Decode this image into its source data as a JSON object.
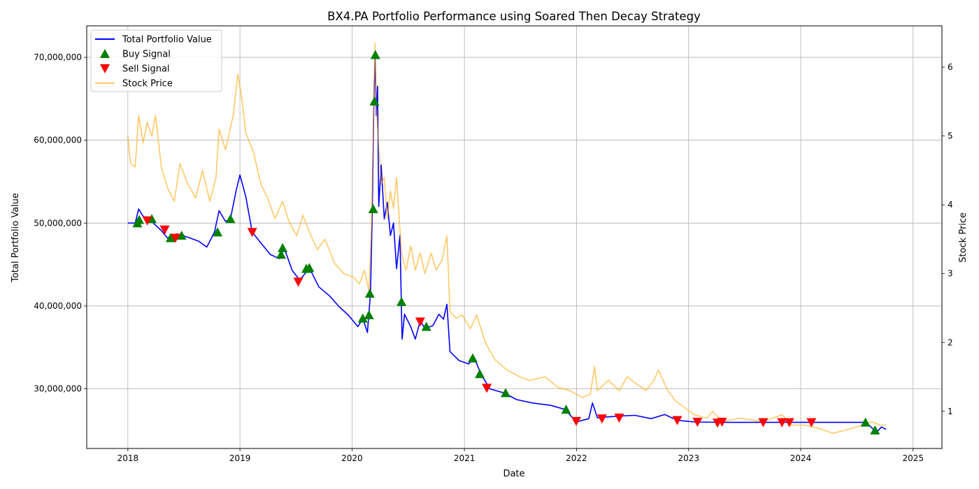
{
  "chart_data": {
    "type": "line",
    "title": "BX4.PA Portfolio Performance using Soared Then Decay Strategy",
    "xlabel": "Date",
    "ylabel_left": "Total Portfolio Value",
    "ylabel_right": "Stock Price",
    "x_range": [
      "2017-08-20",
      "2025-04-05"
    ],
    "y_left_range": [
      22800000,
      73800000
    ],
    "y_right_range": [
      0.46,
      6.6
    ],
    "x_ticks": [
      "2018",
      "2019",
      "2020",
      "2021",
      "2022",
      "2023",
      "2024",
      "2025"
    ],
    "y_left_ticks": [
      "30,000,000",
      "40,000,000",
      "50,000,000",
      "60,000,000",
      "70,000,000"
    ],
    "y_right_ticks": [
      "1",
      "2",
      "3",
      "4",
      "5",
      "6"
    ],
    "grid": true,
    "legend_position": "top-left",
    "legend": [
      "Total Portfolio Value",
      "Buy Signal",
      "Sell Signal",
      "Stock Price"
    ],
    "colors": {
      "portfolio": "#0000ff",
      "buy": "#008000",
      "sell": "#ff0000",
      "price": "#ffa500"
    },
    "series": [
      {
        "name": "Total Portfolio Value",
        "axis": "left",
        "points": [
          [
            "2018-01-01",
            50000000
          ],
          [
            "2018-01-25",
            50000000
          ],
          [
            "2018-02-05",
            51700000
          ],
          [
            "2018-02-20",
            50800000
          ],
          [
            "2018-03-10",
            50600000
          ],
          [
            "2018-03-25",
            50000000
          ],
          [
            "2018-04-20",
            49100000
          ],
          [
            "2018-05-10",
            48200000
          ],
          [
            "2018-06-10",
            48700000
          ],
          [
            "2018-07-15",
            48300000
          ],
          [
            "2018-08-20",
            47800000
          ],
          [
            "2018-09-15",
            47100000
          ],
          [
            "2018-10-10",
            48900000
          ],
          [
            "2018-10-25",
            51500000
          ],
          [
            "2018-11-15",
            50200000
          ],
          [
            "2018-12-01",
            50500000
          ],
          [
            "2018-12-20",
            54000000
          ],
          [
            "2019-01-01",
            55800000
          ],
          [
            "2019-01-20",
            53200000
          ],
          [
            "2019-02-10",
            48900000
          ],
          [
            "2019-03-10",
            47600000
          ],
          [
            "2019-04-10",
            46200000
          ],
          [
            "2019-05-10",
            45700000
          ],
          [
            "2019-05-25",
            47000000
          ],
          [
            "2019-06-20",
            44300000
          ],
          [
            "2019-07-15",
            43100000
          ],
          [
            "2019-08-15",
            44600000
          ],
          [
            "2019-09-15",
            42300000
          ],
          [
            "2019-10-20",
            41200000
          ],
          [
            "2019-11-20",
            39900000
          ],
          [
            "2019-12-20",
            38900000
          ],
          [
            "2020-01-20",
            37500000
          ],
          [
            "2020-02-05",
            38500000
          ],
          [
            "2020-02-20",
            36800000
          ],
          [
            "2020-03-01",
            41500000
          ],
          [
            "2020-03-07",
            51500000
          ],
          [
            "2020-03-12",
            64500000
          ],
          [
            "2020-03-16",
            70200000
          ],
          [
            "2020-03-20",
            63000000
          ],
          [
            "2020-03-24",
            66500000
          ],
          [
            "2020-03-28",
            52000000
          ],
          [
            "2020-04-05",
            57000000
          ],
          [
            "2020-04-15",
            50500000
          ],
          [
            "2020-04-25",
            52500000
          ],
          [
            "2020-05-05",
            48500000
          ],
          [
            "2020-05-15",
            50000000
          ],
          [
            "2020-05-25",
            44500000
          ],
          [
            "2020-06-05",
            48500000
          ],
          [
            "2020-06-12",
            36000000
          ],
          [
            "2020-06-20",
            39000000
          ],
          [
            "2020-07-10",
            37500000
          ],
          [
            "2020-07-25",
            36000000
          ],
          [
            "2020-08-10",
            38200000
          ],
          [
            "2020-08-25",
            37300000
          ],
          [
            "2020-09-20",
            37600000
          ],
          [
            "2020-10-10",
            39000000
          ],
          [
            "2020-10-25",
            38400000
          ],
          [
            "2020-11-05",
            40200000
          ],
          [
            "2020-11-15",
            34500000
          ],
          [
            "2020-12-15",
            33400000
          ],
          [
            "2021-01-15",
            33000000
          ],
          [
            "2021-02-01",
            33800000
          ],
          [
            "2021-02-25",
            31700000
          ],
          [
            "2021-03-25",
            30000000
          ],
          [
            "2021-05-10",
            29500000
          ],
          [
            "2021-06-20",
            28700000
          ],
          [
            "2021-08-10",
            28300000
          ],
          [
            "2021-10-10",
            28000000
          ],
          [
            "2021-11-25",
            27500000
          ],
          [
            "2021-12-31",
            26000000
          ],
          [
            "2022-02-10",
            26400000
          ],
          [
            "2022-02-22",
            28300000
          ],
          [
            "2022-03-10",
            26500000
          ],
          [
            "2022-05-15",
            26700000
          ],
          [
            "2022-07-10",
            26800000
          ],
          [
            "2022-09-01",
            26400000
          ],
          [
            "2022-10-15",
            26900000
          ],
          [
            "2022-11-25",
            26200000
          ],
          [
            "2023-01-20",
            26000000
          ],
          [
            "2023-04-15",
            25950000
          ],
          [
            "2023-09-01",
            25950000
          ],
          [
            "2024-01-01",
            25950000
          ],
          [
            "2024-06-01",
            25950000
          ],
          [
            "2024-08-01",
            25950000
          ],
          [
            "2024-08-25",
            25100000
          ],
          [
            "2024-09-05",
            24800000
          ],
          [
            "2024-09-20",
            25400000
          ],
          [
            "2024-10-05",
            25100000
          ]
        ]
      },
      {
        "name": "Stock Price",
        "axis": "right",
        "points": [
          [
            "2018-01-01",
            5.0
          ],
          [
            "2018-01-10",
            4.6
          ],
          [
            "2018-01-25",
            4.55
          ],
          [
            "2018-02-05",
            5.3
          ],
          [
            "2018-02-20",
            4.9
          ],
          [
            "2018-03-05",
            5.2
          ],
          [
            "2018-03-20",
            5.0
          ],
          [
            "2018-04-01",
            5.3
          ],
          [
            "2018-04-20",
            4.55
          ],
          [
            "2018-05-10",
            4.25
          ],
          [
            "2018-06-01",
            4.05
          ],
          [
            "2018-06-20",
            4.6
          ],
          [
            "2018-07-15",
            4.3
          ],
          [
            "2018-08-10",
            4.1
          ],
          [
            "2018-09-01",
            4.5
          ],
          [
            "2018-09-25",
            4.05
          ],
          [
            "2018-10-15",
            4.4
          ],
          [
            "2018-10-25",
            5.1
          ],
          [
            "2018-11-15",
            4.8
          ],
          [
            "2018-12-10",
            5.3
          ],
          [
            "2018-12-25",
            5.9
          ],
          [
            "2019-01-05",
            5.6
          ],
          [
            "2019-01-20",
            5.05
          ],
          [
            "2019-02-15",
            4.75
          ],
          [
            "2019-03-10",
            4.3
          ],
          [
            "2019-04-01",
            4.1
          ],
          [
            "2019-04-25",
            3.8
          ],
          [
            "2019-05-20",
            4.05
          ],
          [
            "2019-06-10",
            3.75
          ],
          [
            "2019-07-05",
            3.55
          ],
          [
            "2019-07-25",
            3.85
          ],
          [
            "2019-08-15",
            3.6
          ],
          [
            "2019-09-10",
            3.35
          ],
          [
            "2019-10-05",
            3.5
          ],
          [
            "2019-11-05",
            3.15
          ],
          [
            "2019-12-05",
            3.0
          ],
          [
            "2020-01-05",
            2.95
          ],
          [
            "2020-01-25",
            2.85
          ],
          [
            "2020-02-10",
            3.05
          ],
          [
            "2020-02-25",
            2.75
          ],
          [
            "2020-03-05",
            3.8
          ],
          [
            "2020-03-12",
            5.6
          ],
          [
            "2020-03-16",
            6.35
          ],
          [
            "2020-03-20",
            5.4
          ],
          [
            "2020-03-26",
            5.0
          ],
          [
            "2020-04-05",
            4.3
          ],
          [
            "2020-04-15",
            4.4
          ],
          [
            "2020-04-25",
            3.8
          ],
          [
            "2020-05-05",
            4.2
          ],
          [
            "2020-05-15",
            3.95
          ],
          [
            "2020-05-25",
            4.4
          ],
          [
            "2020-06-10",
            3.3
          ],
          [
            "2020-06-25",
            3.05
          ],
          [
            "2020-07-10",
            3.4
          ],
          [
            "2020-07-25",
            3.05
          ],
          [
            "2020-08-10",
            3.3
          ],
          [
            "2020-08-25",
            3.0
          ],
          [
            "2020-09-15",
            3.3
          ],
          [
            "2020-10-01",
            3.05
          ],
          [
            "2020-10-20",
            3.2
          ],
          [
            "2020-11-05",
            3.55
          ],
          [
            "2020-11-15",
            2.45
          ],
          [
            "2020-12-05",
            2.35
          ],
          [
            "2020-12-25",
            2.4
          ],
          [
            "2021-01-20",
            2.2
          ],
          [
            "2021-02-10",
            2.4
          ],
          [
            "2021-03-10",
            2.0
          ],
          [
            "2021-04-10",
            1.75
          ],
          [
            "2021-05-20",
            1.6
          ],
          [
            "2021-07-01",
            1.5
          ],
          [
            "2021-08-01",
            1.45
          ],
          [
            "2021-09-20",
            1.5
          ],
          [
            "2021-11-01",
            1.35
          ],
          [
            "2021-12-10",
            1.3
          ],
          [
            "2022-01-20",
            1.2
          ],
          [
            "2022-02-15",
            1.25
          ],
          [
            "2022-03-01",
            1.65
          ],
          [
            "2022-03-10",
            1.3
          ],
          [
            "2022-04-15",
            1.45
          ],
          [
            "2022-05-20",
            1.3
          ],
          [
            "2022-06-15",
            1.5
          ],
          [
            "2022-07-15",
            1.4
          ],
          [
            "2022-08-15",
            1.3
          ],
          [
            "2022-09-10",
            1.45
          ],
          [
            "2022-09-25",
            1.6
          ],
          [
            "2022-10-25",
            1.3
          ],
          [
            "2022-11-20",
            1.15
          ],
          [
            "2022-12-20",
            1.05
          ],
          [
            "2023-01-20",
            0.95
          ],
          [
            "2023-03-01",
            0.9
          ],
          [
            "2023-03-20",
            1.0
          ],
          [
            "2023-04-20",
            0.85
          ],
          [
            "2023-06-15",
            0.9
          ],
          [
            "2023-09-01",
            0.85
          ],
          [
            "2023-11-01",
            0.95
          ],
          [
            "2023-12-01",
            0.8
          ],
          [
            "2024-01-15",
            0.8
          ],
          [
            "2024-03-01",
            0.75
          ],
          [
            "2024-04-15",
            0.68
          ],
          [
            "2024-05-20",
            0.72
          ],
          [
            "2024-06-15",
            0.75
          ],
          [
            "2024-07-20",
            0.8
          ],
          [
            "2024-08-20",
            0.85
          ],
          [
            "2024-09-15",
            0.8
          ],
          [
            "2024-10-05",
            0.8
          ]
        ]
      },
      {
        "name": "Buy Signal",
        "axis": "left",
        "points": [
          [
            "2018-02-01",
            50000000
          ],
          [
            "2018-02-07",
            50400000
          ],
          [
            "2018-03-20",
            50500000
          ],
          [
            "2018-05-20",
            48200000
          ],
          [
            "2018-06-25",
            48500000
          ],
          [
            "2018-10-20",
            48900000
          ],
          [
            "2018-12-01",
            50500000
          ],
          [
            "2019-05-15",
            46200000
          ],
          [
            "2019-05-20",
            47000000
          ],
          [
            "2019-08-05",
            44500000
          ],
          [
            "2019-08-15",
            44600000
          ],
          [
            "2020-02-05",
            38500000
          ],
          [
            "2020-02-25",
            38900000
          ],
          [
            "2020-02-28",
            41500000
          ],
          [
            "2020-03-10",
            51700000
          ],
          [
            "2020-03-14",
            64700000
          ],
          [
            "2020-03-17",
            70300000
          ],
          [
            "2020-06-10",
            40500000
          ],
          [
            "2020-08-30",
            37500000
          ],
          [
            "2021-01-28",
            33700000
          ],
          [
            "2021-02-20",
            31800000
          ],
          [
            "2021-05-15",
            29500000
          ],
          [
            "2021-11-28",
            27500000
          ],
          [
            "2024-07-30",
            25950000
          ],
          [
            "2024-08-30",
            25000000
          ]
        ]
      },
      {
        "name": "Sell Signal",
        "axis": "left",
        "points": [
          [
            "2018-03-05",
            50300000
          ],
          [
            "2018-05-01",
            49200000
          ],
          [
            "2018-06-05",
            48200000
          ],
          [
            "2019-02-10",
            48900000
          ],
          [
            "2019-07-10",
            42900000
          ],
          [
            "2020-08-10",
            38100000
          ],
          [
            "2021-03-15",
            30100000
          ],
          [
            "2021-12-31",
            26100000
          ],
          [
            "2022-03-25",
            26400000
          ],
          [
            "2022-05-20",
            26500000
          ],
          [
            "2022-11-25",
            26200000
          ],
          [
            "2023-01-30",
            26000000
          ],
          [
            "2023-04-05",
            25900000
          ],
          [
            "2023-04-20",
            26000000
          ],
          [
            "2023-09-01",
            25950000
          ],
          [
            "2023-11-01",
            25950000
          ],
          [
            "2023-11-25",
            25950000
          ],
          [
            "2024-02-05",
            25950000
          ]
        ]
      }
    ]
  }
}
